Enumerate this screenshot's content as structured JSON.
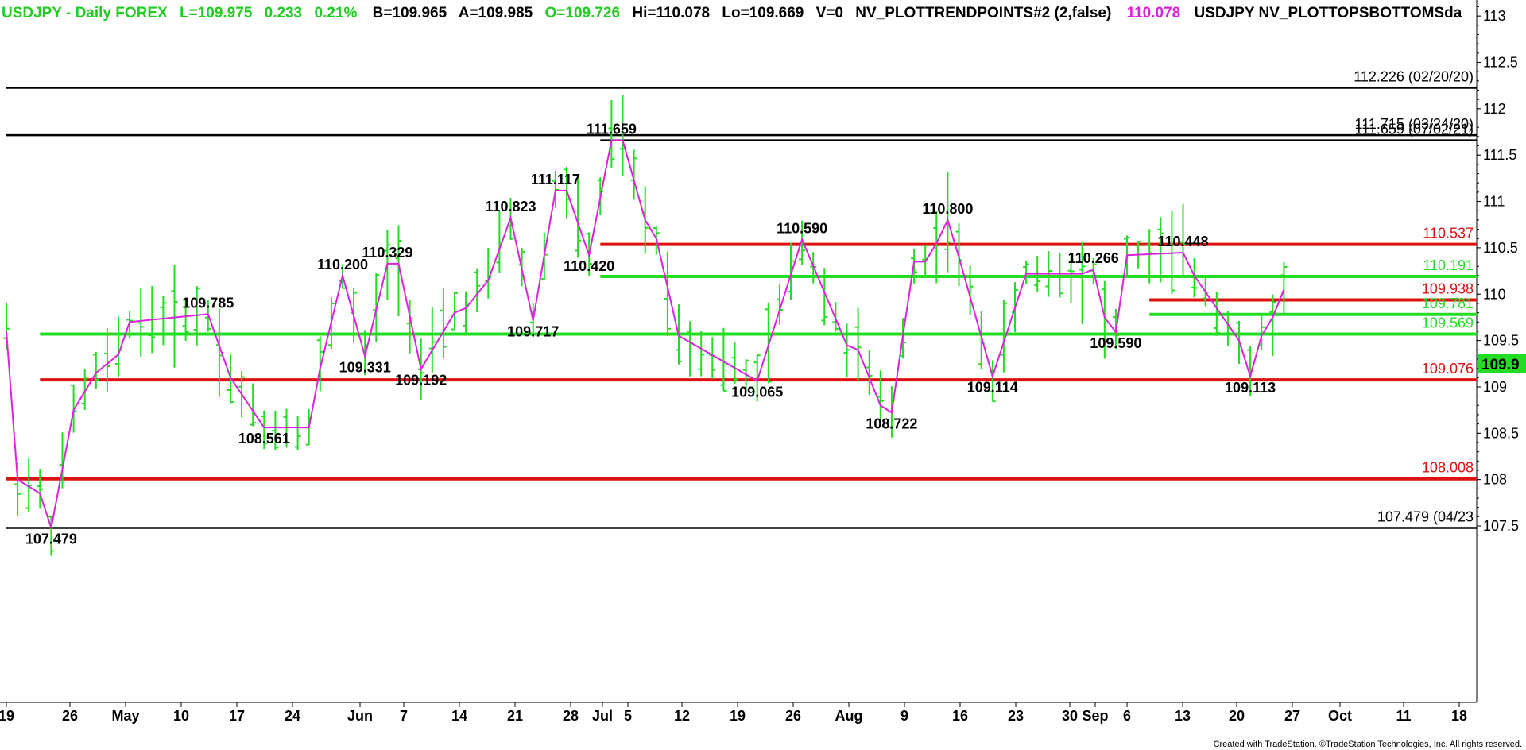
{
  "header": {
    "symbol": "USDJPY - Daily  FOREX",
    "last": "L=109.975",
    "change": "0.233",
    "change_pct": "0.21%",
    "bid": "B=109.965",
    "ask": "A=109.985",
    "open": "O=109.726",
    "high": "Hi=110.078",
    "low": "Lo=109.669",
    "volume": "V=0",
    "study1": "NV_PLOTTRENDPOINTS#2 (2,false)",
    "study1_value": "110.078",
    "study2": "USDJPY NV_PLOTTOPSBOTTOMSda"
  },
  "footer": "Created with TradeStation. ©TradeStation Technologies, Inc. All rights reserved.",
  "colors": {
    "bars": "#22dd22",
    "trend": "#dd22dd",
    "green": "#22dd22",
    "red": "#dd1111",
    "black": "#000000",
    "price_tag": "#22dd22"
  },
  "chart_data": {
    "type": "ohlc-bar",
    "title": "USDJPY - Daily FOREX",
    "ylim": [
      107.2,
      113.2
    ],
    "y_ticks": [
      107.5,
      108,
      108.5,
      109,
      109.5,
      110,
      110.5,
      111,
      111.5,
      112,
      112.5,
      113
    ],
    "y_tick_labels": [
      "107.5",
      "108",
      "108.5",
      "109",
      "109.5",
      "110",
      "110.5",
      "111",
      "111.5",
      "112",
      "112.5",
      "113"
    ],
    "current_price_label": "109.9",
    "x_axis_labels": [
      "19",
      "26",
      "May",
      "10",
      "17",
      "24",
      "Jun",
      "7",
      "14",
      "21",
      "28",
      "Jul",
      "5",
      "12",
      "19",
      "26",
      "Aug",
      "9",
      "16",
      "23",
      "30",
      "Sep",
      "6",
      "13",
      "20",
      "27",
      "Oct",
      "11",
      "18"
    ],
    "levels": [
      {
        "value": 112.226,
        "label": "112.226 (02/20/20)",
        "color": "black",
        "from_day": 0
      },
      {
        "value": 111.715,
        "label": "111.715 (03/24/20)",
        "color": "black",
        "from_day": 0
      },
      {
        "value": 111.659,
        "label": "111.659 (07/02/21)",
        "color": "black",
        "from_day": 53
      },
      {
        "value": 110.537,
        "label": "110.537",
        "color": "red",
        "from_day": 53
      },
      {
        "value": 110.191,
        "label": "110.191",
        "color": "green",
        "from_day": 53
      },
      {
        "value": 109.938,
        "label": "109.938",
        "color": "red",
        "from_day": 102
      },
      {
        "value": 109.781,
        "label": "109.781",
        "color": "green",
        "from_day": 102
      },
      {
        "value": 109.569,
        "label": "109.569",
        "color": "green",
        "from_day": 3
      },
      {
        "value": 109.076,
        "label": "109.076",
        "color": "red",
        "from_day": 3
      },
      {
        "value": 108.008,
        "label": "108.008",
        "color": "red",
        "from_day": 0
      },
      {
        "value": 107.479,
        "label": "107.479 (04/23",
        "color": "black",
        "from_day": 0
      }
    ],
    "swing_points": [
      {
        "day": 0,
        "value": 109.6
      },
      {
        "day": 1,
        "value": 108.0,
        "label": ""
      },
      {
        "day": 3,
        "value": 107.85
      },
      {
        "day": 4,
        "value": 107.479,
        "label": "107.479"
      },
      {
        "day": 6,
        "value": 108.75
      },
      {
        "day": 8,
        "value": 109.15
      },
      {
        "day": 10,
        "value": 109.35
      },
      {
        "day": 11,
        "value": 109.7
      },
      {
        "day": 18,
        "value": 109.785,
        "label": "109.785"
      },
      {
        "day": 20,
        "value": 109.1
      },
      {
        "day": 23,
        "value": 108.561,
        "label": "108.561"
      },
      {
        "day": 27,
        "value": 108.561
      },
      {
        "day": 28,
        "value": 109.2
      },
      {
        "day": 30,
        "value": 110.2,
        "label": "110.200"
      },
      {
        "day": 32,
        "value": 109.331,
        "label": "109.331"
      },
      {
        "day": 34,
        "value": 110.329,
        "label": "110.329"
      },
      {
        "day": 35,
        "value": 110.329
      },
      {
        "day": 37,
        "value": 109.192,
        "label": "109.192"
      },
      {
        "day": 40,
        "value": 109.8
      },
      {
        "day": 41,
        "value": 109.85
      },
      {
        "day": 43,
        "value": 110.15
      },
      {
        "day": 45,
        "value": 110.823,
        "label": "110.823"
      },
      {
        "day": 47,
        "value": 109.717,
        "label": "109.717"
      },
      {
        "day": 49,
        "value": 111.117,
        "label": "111.117"
      },
      {
        "day": 50,
        "value": 111.117
      },
      {
        "day": 52,
        "value": 110.42,
        "label": "110.420"
      },
      {
        "day": 54,
        "value": 111.659,
        "label": "111.659"
      },
      {
        "day": 55,
        "value": 111.659
      },
      {
        "day": 57,
        "value": 110.8
      },
      {
        "day": 58,
        "value": 110.6
      },
      {
        "day": 60,
        "value": 109.55
      },
      {
        "day": 67,
        "value": 109.065,
        "label": "109.065"
      },
      {
        "day": 71,
        "value": 110.59,
        "label": "110.590"
      },
      {
        "day": 75,
        "value": 109.45
      },
      {
        "day": 76,
        "value": 109.4
      },
      {
        "day": 78,
        "value": 108.8
      },
      {
        "day": 79,
        "value": 108.722,
        "label": "108.722"
      },
      {
        "day": 80,
        "value": 109.55
      },
      {
        "day": 81,
        "value": 110.35
      },
      {
        "day": 82,
        "value": 110.35
      },
      {
        "day": 83,
        "value": 110.55
      },
      {
        "day": 84,
        "value": 110.8,
        "label": "110.800"
      },
      {
        "day": 85,
        "value": 110.4
      },
      {
        "day": 88,
        "value": 109.114,
        "label": "109.114"
      },
      {
        "day": 91,
        "value": 110.22
      },
      {
        "day": 96,
        "value": 110.22
      },
      {
        "day": 97,
        "value": 110.266,
        "label": "110.266"
      },
      {
        "day": 98,
        "value": 109.75
      },
      {
        "day": 99,
        "value": 109.59,
        "label": "109.590"
      },
      {
        "day": 100,
        "value": 110.42
      },
      {
        "day": 105,
        "value": 110.448,
        "label": "110.448"
      },
      {
        "day": 106,
        "value": 110.2
      },
      {
        "day": 110,
        "value": 109.5
      },
      {
        "day": 111,
        "value": 109.113,
        "label": "109.113"
      },
      {
        "day": 112,
        "value": 109.55
      },
      {
        "day": 113,
        "value": 109.75
      },
      {
        "day": 114,
        "value": 110.05
      }
    ]
  }
}
